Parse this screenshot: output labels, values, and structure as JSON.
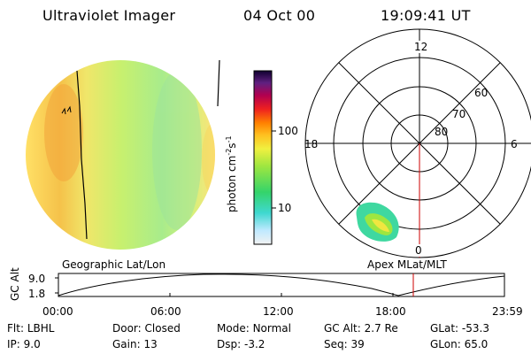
{
  "header": {
    "instrument": "Ultraviolet Imager",
    "date": "04 Oct 00",
    "time": "19:09:41 UT"
  },
  "colorbar": {
    "label": "photon cm⁻²s⁻¹",
    "label_main": "photon cm",
    "sup1": "-2",
    "mid": "s",
    "sup2": "-1",
    "ticks": [
      "100",
      "10"
    ],
    "scale": "log"
  },
  "polar_plot": {
    "mlt_labels": {
      "top": "12",
      "left": "18",
      "right": "6",
      "bottom": "0"
    },
    "lat_labels": [
      "60",
      "70",
      "80"
    ]
  },
  "projection": {
    "left_title": "Geographic Lat/Lon",
    "right_title": "Apex MLat/MLT"
  },
  "altitude_strip": {
    "ylabel": "GC Alt",
    "y_ticks": [
      "9.0",
      "1.8"
    ],
    "x_ticks": [
      "00:00",
      "06:00",
      "12:00",
      "18:00",
      "23:59"
    ]
  },
  "info": {
    "row1": [
      {
        "label": "Flt:",
        "value": "LBHL"
      },
      {
        "label": "Door:",
        "value": "Closed"
      },
      {
        "label": "Mode:",
        "value": "Normal"
      },
      {
        "label": "GC Alt:",
        "value": "2.7 Re"
      },
      {
        "label": "GLat:",
        "value": "-53.3"
      }
    ],
    "row2": [
      {
        "label": "IP:",
        "value": "9.0"
      },
      {
        "label": "Gain:",
        "value": "13"
      },
      {
        "label": "Dsp:",
        "value": "-3.2"
      },
      {
        "label": "Seq:",
        "value": "39"
      },
      {
        "label": "GLon:",
        "value": "65.0"
      }
    ]
  },
  "colors": {
    "border": "#000000",
    "marker": "#cc0000"
  }
}
